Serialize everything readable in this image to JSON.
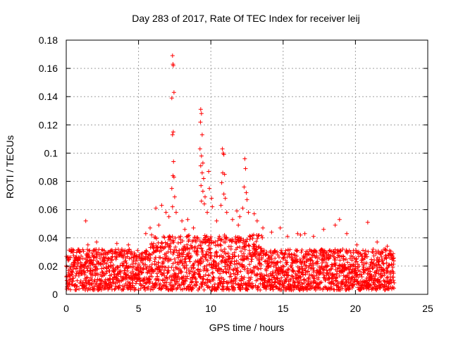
{
  "chart_data": {
    "type": "scatter",
    "title": "Day 283 of 2017, Rate Of TEC Index for receiver leij",
    "xlabel": "GPS time / hours",
    "ylabel": "ROTI / TECUs",
    "xlim": [
      0,
      25
    ],
    "ylim": [
      0,
      0.18
    ],
    "xticks": [
      0,
      5,
      10,
      15,
      20,
      25
    ],
    "xtick_labels": [
      "0",
      "5",
      "10",
      "15",
      "20",
      "25"
    ],
    "yticks": [
      0,
      0.02,
      0.04,
      0.06,
      0.08,
      0.1,
      0.12,
      0.14,
      0.16,
      0.18
    ],
    "ytick_labels": [
      "0",
      "0.02",
      "0.04",
      "0.06",
      "0.08",
      "0.1",
      "0.12",
      "0.14",
      "0.16",
      "0.18"
    ],
    "grid": true,
    "marker": "+",
    "color": "#ff0000",
    "series": [
      {
        "name": "ROTI",
        "points": [
          [
            1.35,
            0.052
          ],
          [
            20.85,
            0.051
          ],
          [
            7.35,
            0.169
          ],
          [
            7.4,
            0.162
          ],
          [
            7.38,
            0.163
          ],
          [
            7.45,
            0.143
          ],
          [
            7.3,
            0.139
          ],
          [
            7.4,
            0.115
          ],
          [
            7.35,
            0.113
          ],
          [
            7.42,
            0.094
          ],
          [
            7.38,
            0.084
          ],
          [
            7.45,
            0.083
          ],
          [
            7.3,
            0.075
          ],
          [
            7.5,
            0.069
          ],
          [
            7.35,
            0.062
          ],
          [
            7.6,
            0.058
          ],
          [
            6.2,
            0.061
          ],
          [
            6.6,
            0.063
          ],
          [
            6.9,
            0.058
          ],
          [
            7.1,
            0.055
          ],
          [
            8.0,
            0.052
          ],
          [
            8.4,
            0.053
          ],
          [
            8.8,
            0.047
          ],
          [
            6.4,
            0.049
          ],
          [
            5.8,
            0.047
          ],
          [
            5.5,
            0.043
          ],
          [
            9.3,
            0.131
          ],
          [
            9.35,
            0.128
          ],
          [
            9.28,
            0.122
          ],
          [
            9.4,
            0.113
          ],
          [
            9.25,
            0.103
          ],
          [
            9.35,
            0.098
          ],
          [
            9.45,
            0.093
          ],
          [
            9.3,
            0.091
          ],
          [
            9.4,
            0.086
          ],
          [
            9.5,
            0.082
          ],
          [
            9.32,
            0.077
          ],
          [
            9.45,
            0.073
          ],
          [
            9.6,
            0.069
          ],
          [
            9.35,
            0.066
          ],
          [
            9.55,
            0.064
          ],
          [
            9.85,
            0.087
          ],
          [
            9.9,
            0.075
          ],
          [
            10.05,
            0.068
          ],
          [
            10.1,
            0.062
          ],
          [
            9.75,
            0.058
          ],
          [
            10.8,
            0.103
          ],
          [
            10.85,
            0.1
          ],
          [
            10.9,
            0.099
          ],
          [
            10.82,
            0.086
          ],
          [
            10.95,
            0.085
          ],
          [
            10.75,
            0.079
          ],
          [
            10.9,
            0.071
          ],
          [
            11.0,
            0.068
          ],
          [
            10.7,
            0.063
          ],
          [
            11.1,
            0.058
          ],
          [
            12.35,
            0.096
          ],
          [
            12.4,
            0.089
          ],
          [
            12.3,
            0.076
          ],
          [
            12.45,
            0.072
          ],
          [
            12.5,
            0.067
          ],
          [
            12.2,
            0.061
          ],
          [
            12.6,
            0.058
          ],
          [
            12.0,
            0.055
          ],
          [
            11.8,
            0.059
          ],
          [
            13.0,
            0.057
          ],
          [
            11.5,
            0.053
          ],
          [
            13.2,
            0.052
          ],
          [
            13.6,
            0.047
          ],
          [
            14.2,
            0.044
          ],
          [
            14.8,
            0.047
          ],
          [
            15.3,
            0.041
          ],
          [
            16.0,
            0.043
          ],
          [
            16.5,
            0.043
          ],
          [
            17.8,
            0.046
          ],
          [
            18.6,
            0.049
          ],
          [
            18.9,
            0.053
          ],
          [
            19.4,
            0.043
          ],
          [
            8.2,
            0.046
          ],
          [
            10.4,
            0.052
          ],
          [
            11.9,
            0.049
          ],
          [
            1.5,
            0.035
          ],
          [
            2.1,
            0.037
          ],
          [
            3.5,
            0.036
          ],
          [
            4.3,
            0.035
          ],
          [
            16.2,
            0.042
          ],
          [
            17.1,
            0.041
          ],
          [
            20.1,
            0.035
          ],
          [
            21.5,
            0.037
          ],
          [
            22.2,
            0.034
          ]
        ],
        "baseline_band": {
          "x_start": 0,
          "x_end": 22.7,
          "typical_min": 0.003,
          "typical_max": 0.032,
          "note": "dense cloud of ROTI samples between roughly 0.005 and 0.03 TECU/min across the whole day"
        }
      }
    ]
  }
}
